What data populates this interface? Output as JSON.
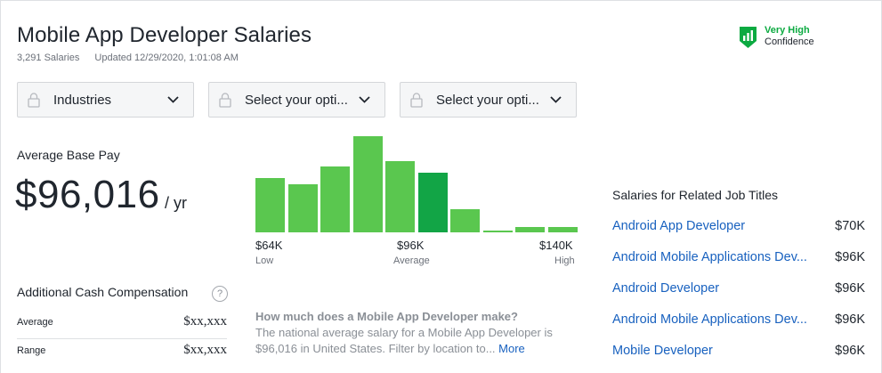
{
  "header": {
    "title": "Mobile App Developer Salaries",
    "salary_count": "3,291 Salaries",
    "updated": "Updated 12/29/2020, 1:01:08 AM"
  },
  "confidence": {
    "level": "Very High",
    "label": "Confidence",
    "color": "#0caa41"
  },
  "filters": [
    {
      "label": "Industries",
      "icon": "lock-icon"
    },
    {
      "label": "Select your opti...",
      "icon": "lock-icon"
    },
    {
      "label": "Select your opti...",
      "icon": "lock-icon"
    }
  ],
  "pay": {
    "label": "Average Base Pay",
    "value": "$96,016",
    "unit": "/ yr"
  },
  "chart_data": {
    "type": "bar",
    "title": "",
    "bar_heights_relative": [
      0.55,
      0.49,
      0.67,
      0.98,
      0.73,
      0.61,
      0.24,
      0.02,
      0.05,
      0.05
    ],
    "highlight_index": 5,
    "colors": {
      "bar": "#5ac74f",
      "highlight": "#12a546"
    },
    "axis": [
      {
        "value": "$64K",
        "sub": "Low"
      },
      {
        "value": "$96K",
        "sub": "Average"
      },
      {
        "value": "$140K",
        "sub": "High"
      }
    ]
  },
  "additional": {
    "label": "Additional Cash Compensation",
    "help": "?",
    "rows": [
      {
        "label": "Average",
        "value": "$xx,xxx"
      },
      {
        "label": "Range",
        "value": "$xx,xxx"
      }
    ]
  },
  "howmuch": {
    "question": "How much does a Mobile App Developer make?",
    "text": "The national average salary for a Mobile App Developer is $96,016 in United States. Filter by location to...",
    "more": "More"
  },
  "related": {
    "title": "Salaries for Related Job Titles",
    "items": [
      {
        "title": "Android App Developer",
        "salary": "$70K"
      },
      {
        "title": "Android Mobile Applications Dev...",
        "salary": "$96K"
      },
      {
        "title": "Android Developer",
        "salary": "$96K"
      },
      {
        "title": "Android Mobile Applications Dev...",
        "salary": "$96K"
      },
      {
        "title": "Mobile Developer",
        "salary": "$96K"
      }
    ]
  }
}
